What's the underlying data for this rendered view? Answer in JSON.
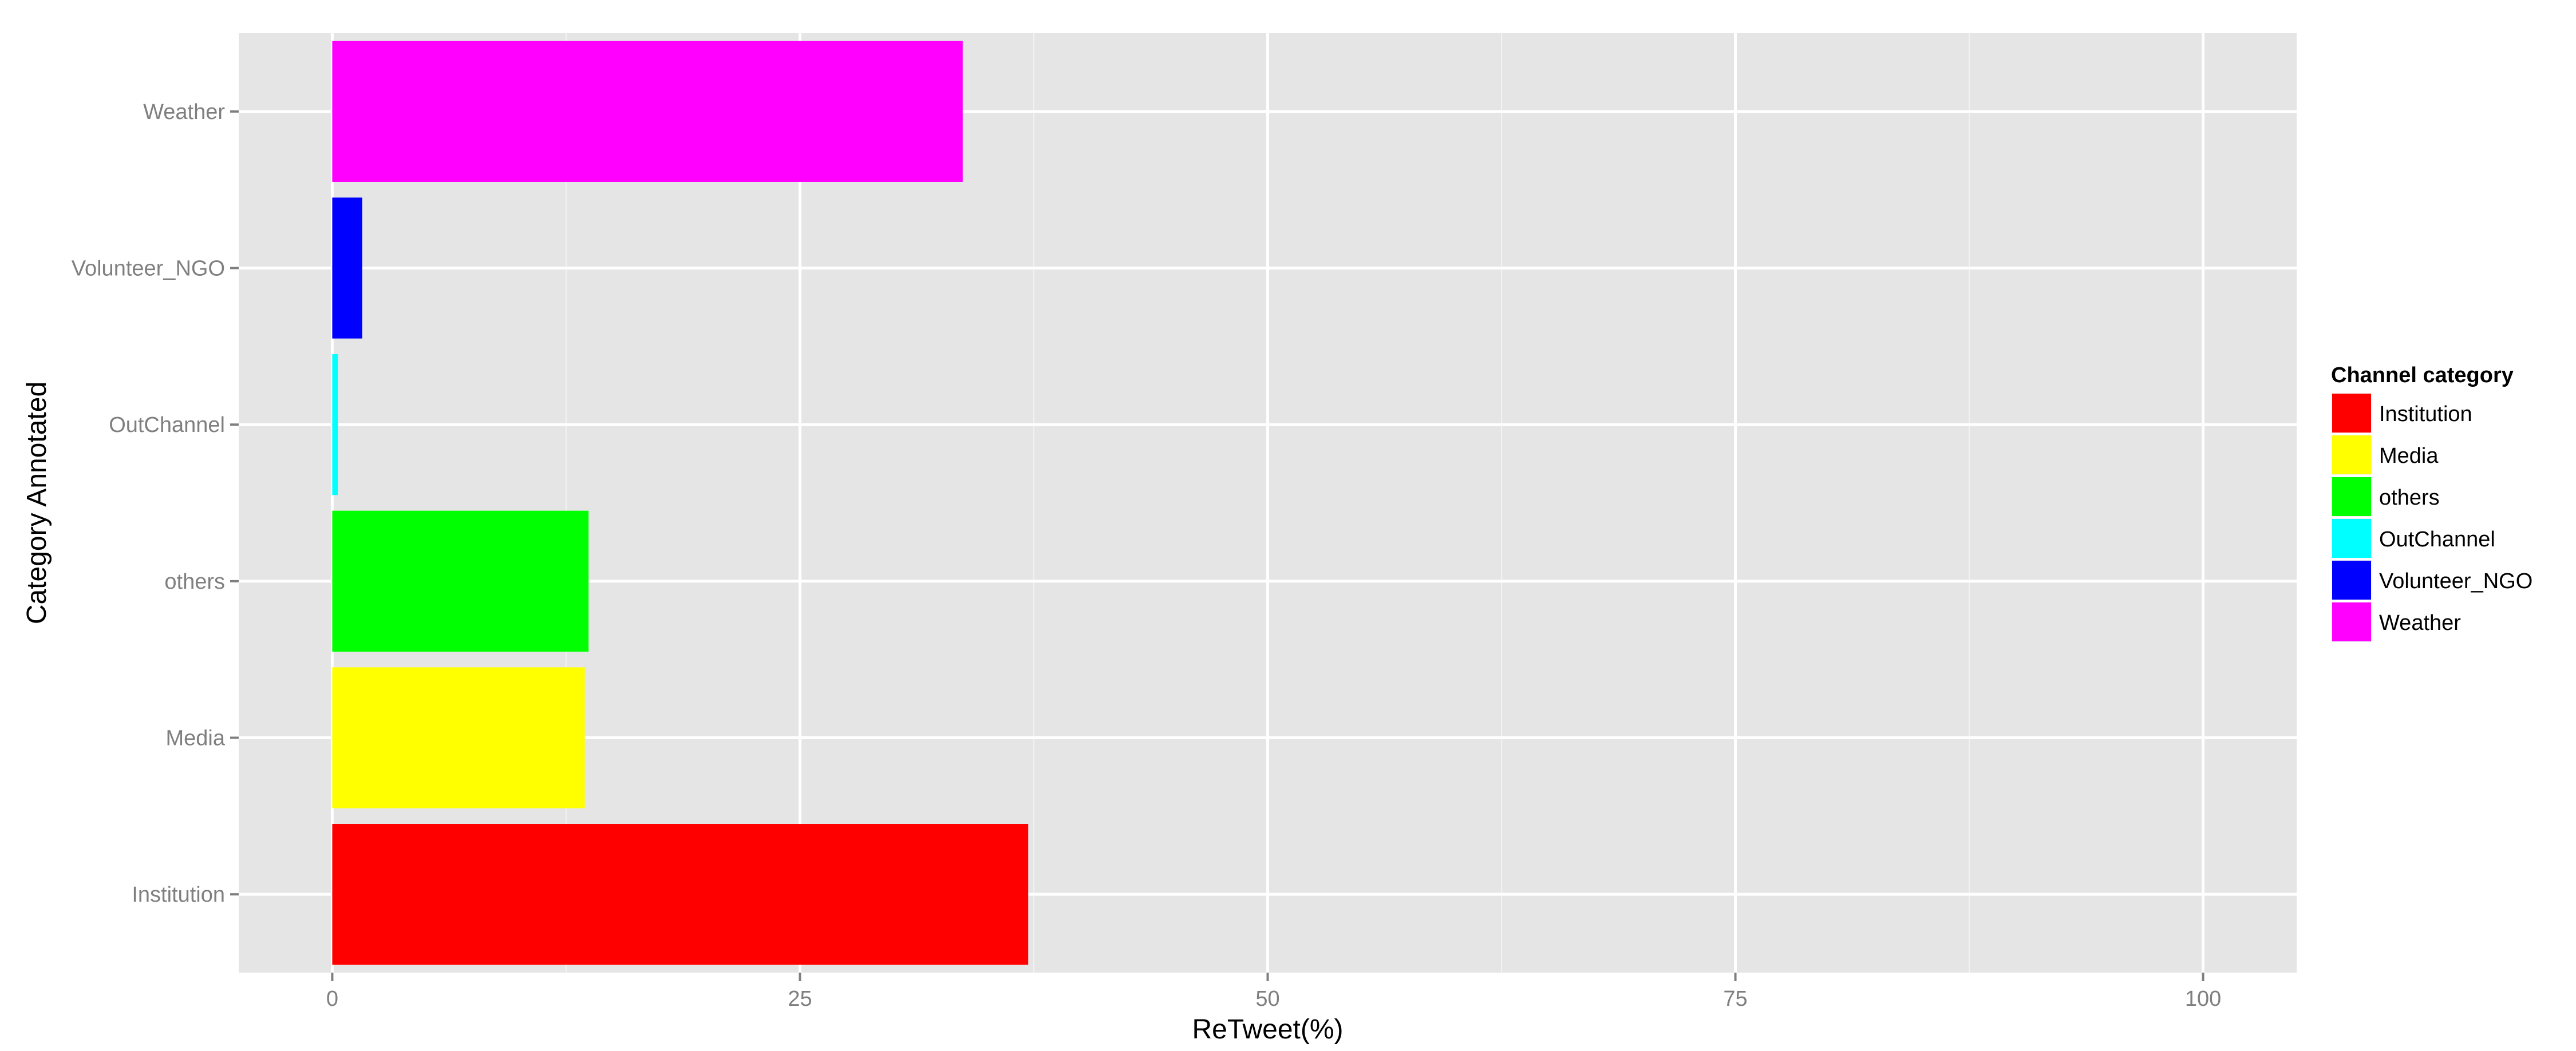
{
  "chart_data": {
    "type": "bar",
    "orientation": "horizontal",
    "categories": [
      "Institution",
      "Media",
      "others",
      "OutChannel",
      "Volunteer_NGO",
      "Weather"
    ],
    "values": [
      37.2,
      13.5,
      13.7,
      0.3,
      1.6,
      33.7
    ],
    "colors": [
      "#FF0000",
      "#FFFF00",
      "#00FF00",
      "#00FFFF",
      "#0000FF",
      "#FF00FF"
    ],
    "xlabel": "ReTweet(%)",
    "ylabel": "Category Annotated",
    "xlim": [
      -5,
      105
    ],
    "xticks": [
      0,
      25,
      50,
      75,
      100
    ],
    "xtick_labels": [
      "0",
      "25",
      "50",
      "75",
      "100"
    ],
    "grid": true,
    "panel_background": "#E5E5E5",
    "legend": {
      "title": "Channel category",
      "position": "right",
      "items": [
        "Institution",
        "Media",
        "others",
        "OutChannel",
        "Volunteer_NGO",
        "Weather"
      ]
    }
  }
}
